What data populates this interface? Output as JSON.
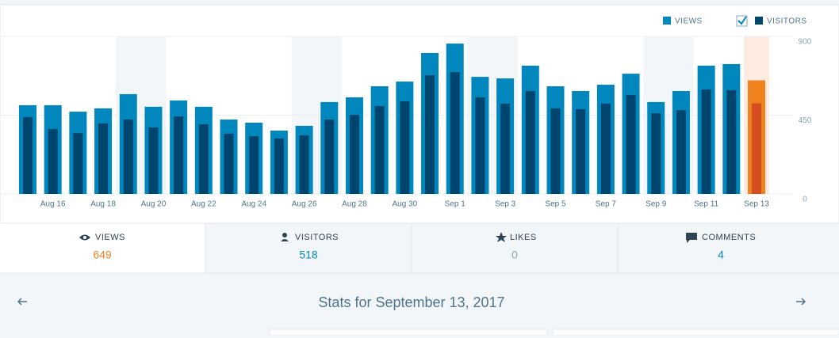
{
  "chart_data": {
    "type": "bar",
    "categories": [
      null,
      "Aug 16",
      null,
      "Aug 18",
      null,
      "Aug 20",
      null,
      "Aug 22",
      null,
      "Aug 24",
      null,
      "Aug 26",
      null,
      "Aug 28",
      null,
      "Aug 30",
      null,
      "Sep 1",
      null,
      "Sep 3",
      null,
      "Sep 5",
      null,
      "Sep 7",
      null,
      "Sep 9",
      null,
      "Sep 11",
      null,
      "Sep 13"
    ],
    "series": [
      {
        "name": "VIEWS",
        "color": "#0087be",
        "values": [
          507,
          507,
          470,
          489,
          570,
          498,
          534,
          498,
          425,
          407,
          362,
          389,
          525,
          552,
          615,
          642,
          805,
          859,
          669,
          660,
          733,
          615,
          588,
          624,
          687,
          525,
          588,
          733,
          742,
          649
        ]
      },
      {
        "name": "VISITORS",
        "color": "#00456e",
        "values": [
          439,
          371,
          348,
          403,
          425,
          380,
          443,
          398,
          344,
          330,
          317,
          335,
          425,
          452,
          502,
          529,
          678,
          696,
          552,
          516,
          588,
          489,
          484,
          516,
          565,
          461,
          479,
          597,
          593,
          518
        ]
      }
    ],
    "ylim": [
      0,
      900
    ],
    "yticks": [
      0,
      450,
      900
    ],
    "grid": true,
    "legend": "top-right"
  },
  "tabs": [
    {
      "label": "VIEWS",
      "value": "649"
    },
    {
      "label": "VISITORS",
      "value": "518"
    },
    {
      "label": "LIKES",
      "value": "0"
    },
    {
      "label": "COMMENTS",
      "value": "4"
    }
  ],
  "footer": {
    "title": "Stats for September 13, 2017"
  }
}
